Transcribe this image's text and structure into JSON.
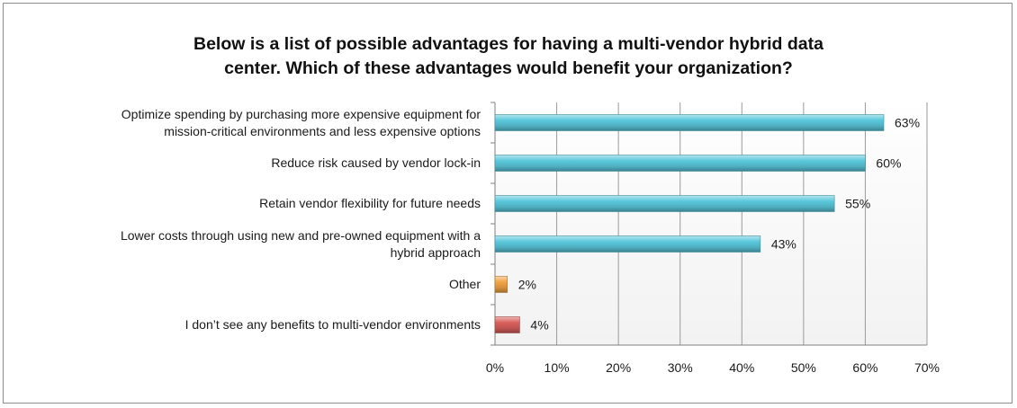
{
  "chart_data": {
    "type": "bar",
    "orientation": "horizontal",
    "title_lines": [
      "Below is a list of possible advantages for having a multi-vendor hybrid data",
      "center. Which of these advantages would benefit your organization?"
    ],
    "categories": [
      {
        "lines": [
          "Optimize spending by purchasing more expensive equipment for",
          "mission-critical environments and less expensive options"
        ],
        "value": 63,
        "label": "63%",
        "color": "#5bc8dc"
      },
      {
        "lines": [
          "Reduce risk caused by vendor lock-in"
        ],
        "value": 60,
        "label": "60%",
        "color": "#5bc8dc"
      },
      {
        "lines": [
          "Retain vendor flexibility for future needs"
        ],
        "value": 55,
        "label": "55%",
        "color": "#5bc8dc"
      },
      {
        "lines": [
          "Lower costs through using new and pre-owned equipment with a",
          "hybrid approach"
        ],
        "value": 43,
        "label": "43%",
        "color": "#5bc8dc"
      },
      {
        "lines": [
          "Other"
        ],
        "value": 2,
        "label": "2%",
        "color": "#f2a444"
      },
      {
        "lines": [
          "I don’t see any benefits to multi-vendor environments"
        ],
        "value": 4,
        "label": "4%",
        "color": "#d9605c"
      }
    ],
    "xlim": [
      0,
      70
    ],
    "xticks": [
      "0%",
      "10%",
      "20%",
      "30%",
      "40%",
      "50%",
      "60%",
      "70%"
    ],
    "xtick_values": [
      0,
      10,
      20,
      30,
      40,
      50,
      60,
      70
    ],
    "grid": true,
    "xlabel": "",
    "ylabel": ""
  }
}
